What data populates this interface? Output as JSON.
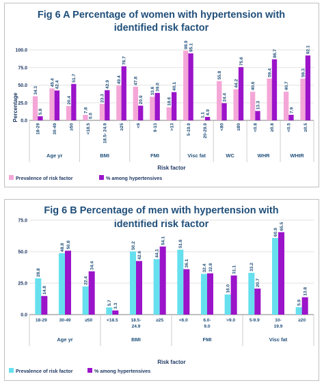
{
  "chart_data": [
    {
      "type": "bar",
      "title_line1": "Fig 6 A Percentage of women with hypertension with",
      "title_line2": "identified risk factor",
      "xlabel": "Risk factor",
      "ylabel": "Percentage",
      "ylim": [
        0,
        100
      ],
      "yticks": [
        "0.0",
        "25.0",
        "50.0",
        "75.0",
        "100.0"
      ],
      "tick_values": [
        0,
        25,
        50,
        75,
        100
      ],
      "category_label_orientation": "vertical",
      "grid": "horizontal",
      "legend_placement": "bottom-left",
      "groups": [
        {
          "name": "Age yr",
          "categories": [
            "18-29",
            "30-49",
            "≥50"
          ]
        },
        {
          "name": "BMI",
          "categories": [
            "<18.5",
            "18.5- 24.9",
            "≥25"
          ]
        },
        {
          "name": "FMI",
          "categories": [
            "<9",
            "9-13",
            ">13"
          ]
        },
        {
          "name": "Visc fat",
          "categories": [
            "5-19.9",
            "20-29.9"
          ]
        },
        {
          "name": "WC",
          "categories": [
            "<80",
            "≥80"
          ]
        },
        {
          "name": "WHR",
          "categories": [
            "<0.8",
            "≥0.8"
          ]
        },
        {
          "name": "WHtR",
          "categories": [
            "<0.5",
            "≥0.5"
          ]
        }
      ],
      "series": [
        {
          "name": "Prevalence of risk factor",
          "color": "#f4a6d7",
          "values": [
            34.3,
            45.4,
            20.4,
            7.8,
            23.3,
            49.4,
            47.8,
            33.6,
            18.6,
            98.9,
            1.1,
            55.8,
            44.2,
            40.6,
            59.4,
            40.7,
            59.3
          ],
          "labels": [
            "34.3",
            "45.4",
            "20.4",
            "7.8",
            "23.3",
            "49.4",
            "47.8",
            "33.6",
            "18.6",
            "98.9",
            "1.1",
            "55.8",
            "44.2",
            "40.6",
            "59.4",
            "40.7",
            "59.3"
          ]
        },
        {
          "name": "% among hypertensives",
          "color": "#9b14c9",
          "values": [
            5.8,
            42.4,
            51.7,
            0.0,
            42.9,
            76.7,
            20.9,
            39.0,
            40.1,
            95.1,
            4.9,
            24.4,
            75.6,
            13.3,
            86.7,
            7.9,
            92.1
          ],
          "labels": [
            "5.8",
            "42.4",
            "51.7",
            "0.0",
            "42.9",
            "76.7",
            "20.9",
            "39.0",
            "40.1",
            "95.1",
            "4.9",
            "24.4",
            "75.6",
            "13.3",
            "86.7",
            "7.9",
            "92.1"
          ]
        }
      ]
    },
    {
      "type": "bar",
      "title_line1": "Fig 6 B Percentage of men with hypertension with",
      "title_line2": "identified risk factor",
      "xlabel": "Risk factor",
      "ylabel": "",
      "ylim": [
        0,
        75
      ],
      "yticks": [
        "0.0",
        "25.0",
        "50.0",
        "75.0"
      ],
      "tick_values": [
        0,
        25,
        50,
        75
      ],
      "category_label_orientation": "horizontal",
      "grid": "horizontal",
      "legend_placement": "bottom-left",
      "groups": [
        {
          "name": "Age yr",
          "categories": [
            "18-29",
            "30-49",
            "≥50"
          ]
        },
        {
          "name": "BMI",
          "categories": [
            "<18.5",
            "18.5- 24.9",
            "≥25"
          ]
        },
        {
          "name": "FMI",
          "categories": [
            "<6.0",
            "6.0- 9.0",
            ">9.0"
          ]
        },
        {
          "name": "Visc fat",
          "categories": [
            "5-9.9",
            "10- 19.9",
            "≥20"
          ]
        }
      ],
      "series": [
        {
          "name": "Prevalence of risk factor",
          "color": "#66e0ee",
          "values": [
            28.8,
            48.8,
            22.4,
            5.7,
            50.2,
            44.1,
            51.6,
            32.4,
            16.0,
            33.2,
            60.9,
            5.9
          ],
          "labels": [
            "28.8",
            "48.8",
            "22.4",
            "5.7",
            "50.2",
            "44.1",
            "51.6",
            "32.4",
            "16.0",
            "33.2",
            "60.9",
            "5.9"
          ]
        },
        {
          "name": "% among hypertensives",
          "color": "#9b14c9",
          "values": [
            14.8,
            50.8,
            34.4,
            3.3,
            42.6,
            54.1,
            36.1,
            32.8,
            31.1,
            20.7,
            65.5,
            13.8
          ],
          "labels": [
            "14.8",
            "50.8",
            "34.4",
            "3.3",
            "42.6",
            "54.1",
            "36.1",
            "32.8",
            "31.1",
            "20.7",
            "65.5",
            "13.8"
          ]
        }
      ]
    }
  ]
}
